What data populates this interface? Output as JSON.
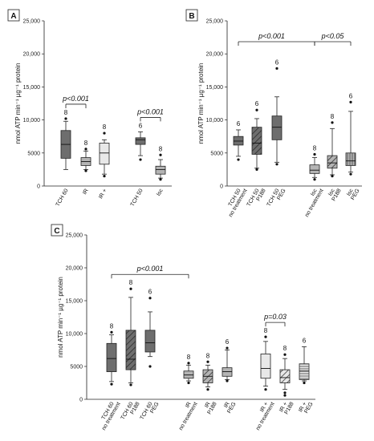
{
  "colors": {
    "dark": "#6e6e6e",
    "mid": "#b4b4b4",
    "light": "#e8e8e8",
    "axis": "#222222"
  },
  "chart_data": [
    {
      "panel": "A",
      "type": "box",
      "ylabel": "nmol ATP min⁻¹ µg⁻¹ protein",
      "ylim": [
        0,
        25000
      ],
      "yticks": [
        "0",
        "5000",
        "10,000",
        "15,000",
        "20,000",
        "25,000"
      ],
      "groups": [
        {
          "label": "TCH 60",
          "n": "8",
          "fill": "dark",
          "pattern": "none",
          "box": {
            "whisker_low": 2500,
            "q1": 4200,
            "median": 6300,
            "q3": 8400,
            "whisker_high": 9800,
            "outliers": [
              10200
            ]
          }
        },
        {
          "label": "IR",
          "n": "8",
          "fill": "mid",
          "pattern": "none",
          "box": {
            "whisker_low": 2500,
            "q1": 3100,
            "median": 3700,
            "q3": 4300,
            "whisker_high": 5300,
            "outliers": [
              2300,
              5600
            ]
          }
        },
        {
          "label": "IR +",
          "n": "8",
          "fill": "light",
          "pattern": "none",
          "box": {
            "whisker_low": 1800,
            "q1": 3300,
            "median": 5000,
            "q3": 6500,
            "whisker_high": 7000,
            "outliers": [
              1500,
              8000
            ]
          }
        },
        {
          "label": "TCH 50",
          "n": "6",
          "fill": "dark",
          "pattern": "none",
          "box": {
            "whisker_low": 4600,
            "q1": 6300,
            "median": 7000,
            "q3": 7300,
            "whisker_high": 8200,
            "outliers": [
              4000
            ]
          }
        },
        {
          "label": "Isc",
          "n": "8",
          "fill": "mid",
          "pattern": "none",
          "box": {
            "whisker_low": 1200,
            "q1": 1800,
            "median": 2500,
            "q3": 3000,
            "whisker_high": 4000,
            "outliers": [
              1000,
              4700
            ]
          }
        }
      ],
      "comparisons": [
        {
          "from": 0,
          "to": 1,
          "label": "p<0.001"
        },
        {
          "from": 3,
          "to": 4,
          "label": "p<0.001"
        }
      ]
    },
    {
      "panel": "B",
      "type": "box",
      "ylabel": "nmol ATP min⁻¹ µg⁻¹ protein",
      "ylim": [
        0,
        25000
      ],
      "yticks": [
        "0",
        "5000",
        "10,000",
        "15,000",
        "20,000",
        "25,000"
      ],
      "groups": [
        {
          "label": [
            "TCH 50",
            "no treatment"
          ],
          "n": "6",
          "fill": "dark",
          "pattern": "none",
          "box": {
            "whisker_low": 4500,
            "q1": 6200,
            "median": 6800,
            "q3": 7500,
            "whisker_high": 8500,
            "outliers": [
              4000
            ]
          }
        },
        {
          "label": [
            "TCH 50",
            "P188"
          ],
          "n": "6",
          "fill": "dark",
          "pattern": "hatch",
          "box": {
            "whisker_low": 2700,
            "q1": 4800,
            "median": 6500,
            "q3": 8900,
            "whisker_high": 10200,
            "outliers": [
              2500,
              11500
            ]
          }
        },
        {
          "label": [
            "TCH 50",
            "PEG"
          ],
          "n": "6",
          "fill": "dark",
          "pattern": "none",
          "box": {
            "whisker_low": 3600,
            "q1": 7000,
            "median": 8900,
            "q3": 10600,
            "whisker_high": 13500,
            "outliers": [
              3300,
              17800
            ]
          }
        },
        {
          "label": [
            "Isc",
            "no treatment"
          ],
          "n": "8",
          "fill": "mid",
          "pattern": "none",
          "box": {
            "whisker_low": 1300,
            "q1": 1900,
            "median": 2400,
            "q3": 3200,
            "whisker_high": 4300,
            "outliers": [
              1000,
              4800
            ]
          }
        },
        {
          "label": [
            "Isc",
            "P188"
          ],
          "n": "8",
          "fill": "mid",
          "pattern": "hatch",
          "box": {
            "whisker_low": 1700,
            "q1": 2700,
            "median": 3500,
            "q3": 4600,
            "whisker_high": 8700,
            "outliers": [
              1500,
              9600
            ]
          }
        },
        {
          "label": [
            "Isc",
            "PEG"
          ],
          "n": "6",
          "fill": "mid",
          "pattern": "vlines",
          "box": {
            "whisker_low": 2100,
            "q1": 3100,
            "median": 3800,
            "q3": 5000,
            "whisker_high": 11300,
            "outliers": [
              1800,
              12700
            ]
          }
        }
      ],
      "comparisons": [
        {
          "from": 0,
          "to": 3,
          "label": "p<0.001",
          "tier": 2
        },
        {
          "from": 3,
          "to": 5,
          "label": "p<0.05",
          "tier": 1
        }
      ]
    },
    {
      "panel": "C",
      "type": "box",
      "ylabel": "nmol ATP min⁻¹ µg⁻¹ protein",
      "ylim": [
        0,
        25000
      ],
      "yticks": [
        "0",
        "5000",
        "10,000",
        "15,000",
        "20,000",
        "25,000"
      ],
      "groups": [
        {
          "label": [
            "TCH 60",
            "no treatment"
          ],
          "n": "8",
          "fill": "dark",
          "pattern": "none",
          "box": {
            "whisker_low": 2700,
            "q1": 4200,
            "median": 6200,
            "q3": 8500,
            "whisker_high": 9800,
            "outliers": [
              2300,
              10200
            ]
          }
        },
        {
          "label": [
            "TCH 60",
            "P188"
          ],
          "n": "8",
          "fill": "dark",
          "pattern": "hatch",
          "box": {
            "whisker_low": 2500,
            "q1": 4500,
            "median": 6100,
            "q3": 10500,
            "whisker_high": 15500,
            "outliers": [
              2200,
              16800
            ]
          }
        },
        {
          "label": [
            "TCH 60",
            "PEG"
          ],
          "n": "6",
          "fill": "dark",
          "pattern": "none",
          "box": {
            "whisker_low": 6500,
            "q1": 7200,
            "median": 8600,
            "q3": 10500,
            "whisker_high": 13300,
            "outliers": [
              5000,
              15400
            ]
          }
        },
        {
          "label": [
            "IR",
            "no treatment"
          ],
          "n": "8",
          "fill": "mid",
          "pattern": "none",
          "box": {
            "whisker_low": 2800,
            "q1": 3200,
            "median": 3700,
            "q3": 4300,
            "whisker_high": 5200,
            "outliers": [
              2500,
              5500
            ]
          }
        },
        {
          "label": [
            "IR",
            "P188"
          ],
          "n": "8",
          "fill": "mid",
          "pattern": "hatch",
          "box": {
            "whisker_low": 1900,
            "q1": 2500,
            "median": 3500,
            "q3": 4500,
            "whisker_high": 5200,
            "outliers": [
              1500,
              5700
            ]
          }
        },
        {
          "label": [
            "IR",
            "PEG"
          ],
          "n": "6",
          "fill": "mid",
          "pattern": "none",
          "box": {
            "whisker_low": 3000,
            "q1": 3500,
            "median": 4200,
            "q3": 4800,
            "whisker_high": 7500,
            "outliers": [
              2800,
              7800
            ]
          }
        },
        {
          "label": [
            "IR +",
            "no treatment"
          ],
          "n": "8",
          "fill": "light",
          "pattern": "none",
          "box": {
            "whisker_low": 2000,
            "q1": 3200,
            "median": 4700,
            "q3": 6900,
            "whisker_high": 8800,
            "outliers": [
              1500,
              9500
            ]
          }
        },
        {
          "label": [
            "IR +",
            "P188"
          ],
          "n": "8",
          "fill": "light",
          "pattern": "hatch",
          "box": {
            "whisker_low": 1500,
            "q1": 2500,
            "median": 3300,
            "q3": 4500,
            "whisker_high": 6200,
            "outliers": [
              1000,
              600,
              6800
            ]
          }
        },
        {
          "label": [
            "IR +",
            "PEG"
          ],
          "n": "6",
          "fill": "light",
          "pattern": "hlines",
          "box": {
            "whisker_low": 2800,
            "q1": 3000,
            "median": 4300,
            "q3": 5400,
            "whisker_high": 8000,
            "outliers": [
              2500
            ]
          }
        }
      ],
      "comparisons": [
        {
          "from": 0,
          "to": 3,
          "label": "p<0.001"
        },
        {
          "from": 6,
          "to": 7,
          "label": "p=0.03"
        }
      ]
    }
  ]
}
